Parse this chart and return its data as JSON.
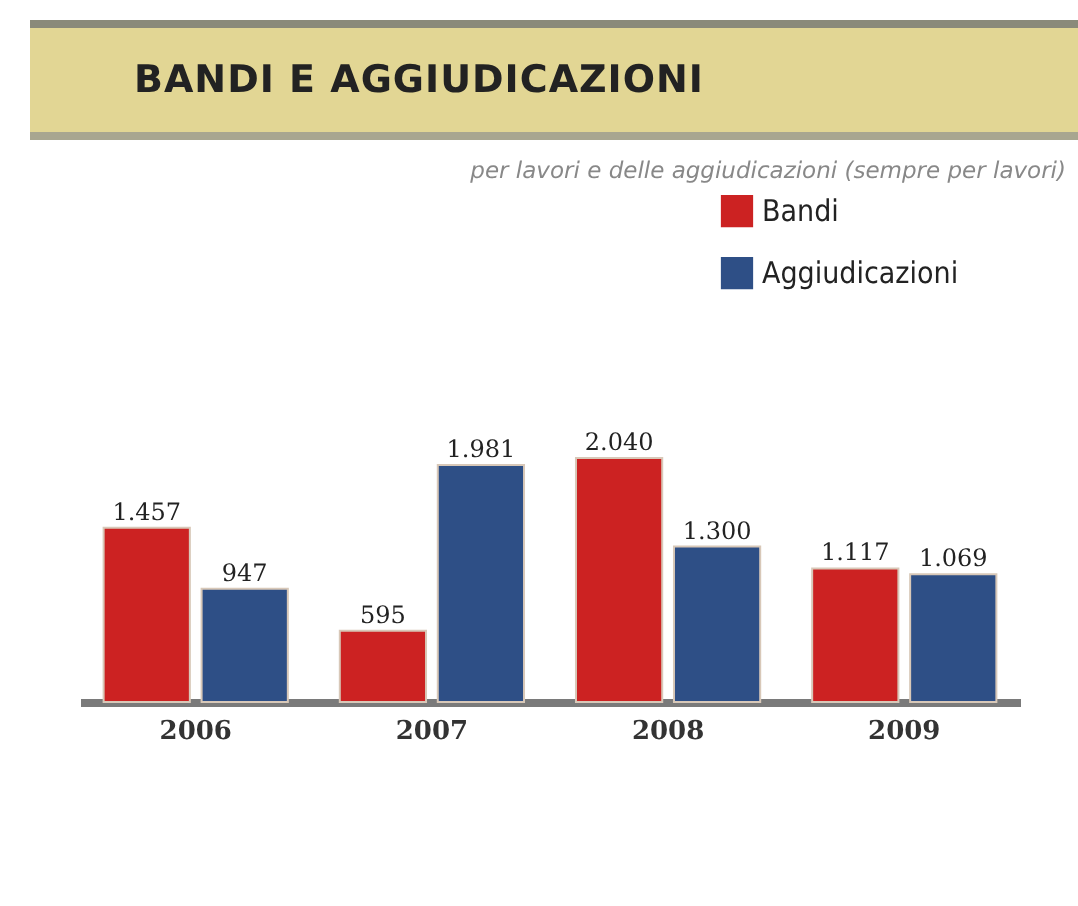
{
  "chart_data": {
    "type": "bar",
    "title": "BANDI E AGGIUDICAZIONI",
    "subtitle": "per lavori e delle aggiudicazioni (sempre per lavori)",
    "categories": [
      "2006",
      "2007",
      "2008",
      "2009"
    ],
    "series": [
      {
        "name": "Bandi",
        "color": "#cc2222",
        "values": [
          1457,
          595,
          2040,
          1117
        ],
        "value_labels": [
          "1.457",
          "595",
          "2.040",
          "1.117"
        ]
      },
      {
        "name": "Aggiudicazioni",
        "color": "#2e4f86",
        "values": [
          947,
          1981,
          1300,
          1069
        ],
        "value_labels": [
          "947",
          "1.981",
          "1.300",
          "1.069"
        ]
      }
    ],
    "legend": "top right",
    "grid": false
  }
}
